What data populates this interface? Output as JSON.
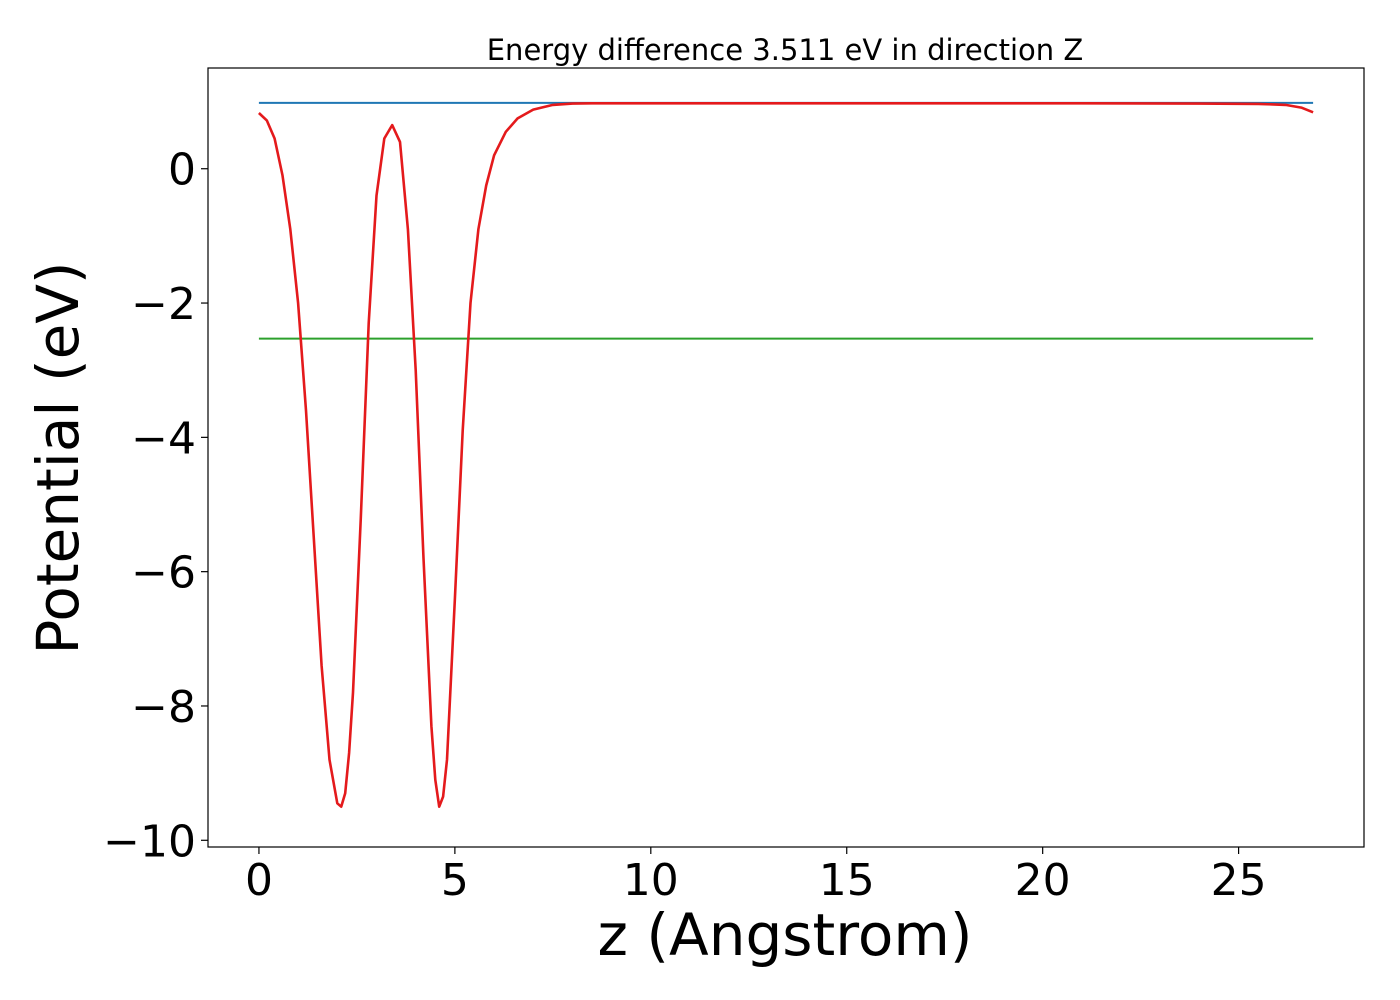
{
  "chart_data": {
    "type": "line",
    "title": "Energy difference 3.511 eV in direction Z",
    "xlabel": "z (Angstrom)",
    "ylabel": "Potential (eV)",
    "xlim": [
      -1.3,
      28.2
    ],
    "ylim": [
      -10.1,
      1.5
    ],
    "x_ticks": [
      0,
      5,
      10,
      15,
      20,
      25
    ],
    "y_ticks": [
      0,
      -2,
      -4,
      -6,
      -8,
      -10
    ],
    "x_tick_labels": [
      "0",
      "5",
      "10",
      "15",
      "20",
      "25"
    ],
    "y_tick_labels": [
      "0",
      "−2",
      "−4",
      "−6",
      "−8",
      "−10"
    ],
    "grid": false,
    "legend": "none",
    "series": [
      {
        "type": "hline",
        "color": "#1f77b4",
        "x": [
          0,
          26.9
        ],
        "y": [
          0.98,
          0.98
        ]
      },
      {
        "type": "hline",
        "color": "#2ca02c",
        "x": [
          0,
          26.9
        ],
        "y": [
          -2.53,
          -2.53
        ]
      },
      {
        "type": "curve",
        "color": "#e41a1c",
        "x": [
          0,
          0.2,
          0.4,
          0.6,
          0.8,
          1.0,
          1.2,
          1.4,
          1.6,
          1.8,
          2.0,
          2.1,
          2.2,
          2.3,
          2.4,
          2.6,
          2.8,
          3.0,
          3.2,
          3.4,
          3.6,
          3.8,
          4.0,
          4.2,
          4.4,
          4.5,
          4.6,
          4.7,
          4.8,
          5.0,
          5.2,
          5.4,
          5.6,
          5.8,
          6.0,
          6.3,
          6.6,
          7.0,
          7.5,
          8.0,
          8.5,
          9.0,
          10.0,
          12.0,
          15.0,
          18.0,
          21.0,
          24.0,
          25.5,
          26.2,
          26.6,
          26.9
        ],
        "y": [
          0.83,
          0.72,
          0.45,
          -0.1,
          -0.9,
          -2.0,
          -3.6,
          -5.5,
          -7.4,
          -8.8,
          -9.45,
          -9.5,
          -9.3,
          -8.7,
          -7.8,
          -5.2,
          -2.3,
          -0.4,
          0.45,
          0.65,
          0.4,
          -0.9,
          -3.0,
          -5.8,
          -8.3,
          -9.1,
          -9.5,
          -9.35,
          -8.8,
          -6.4,
          -3.9,
          -2.0,
          -0.9,
          -0.25,
          0.2,
          0.55,
          0.75,
          0.88,
          0.95,
          0.97,
          0.975,
          0.975,
          0.975,
          0.975,
          0.975,
          0.975,
          0.975,
          0.97,
          0.965,
          0.95,
          0.91,
          0.84
        ]
      }
    ]
  }
}
